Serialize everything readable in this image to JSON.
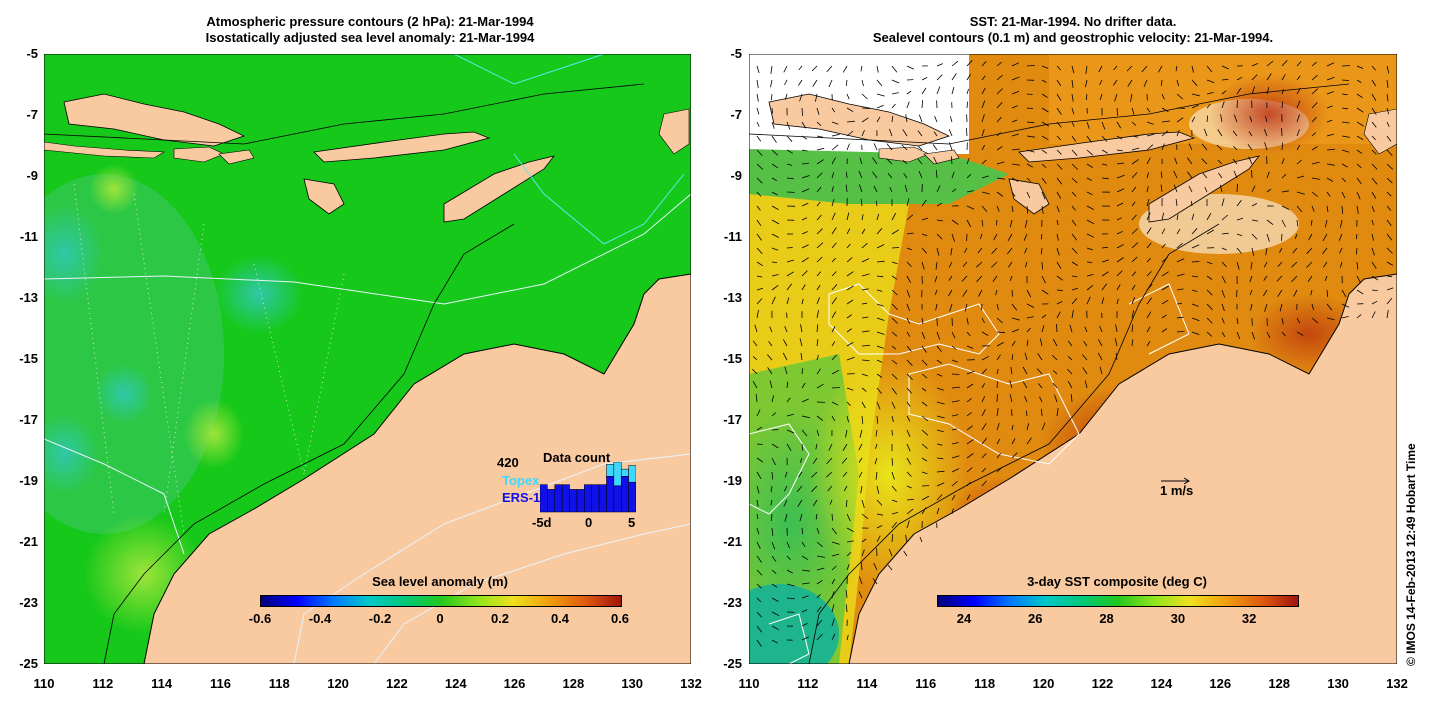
{
  "left_panel": {
    "title_line1": "Atmospheric pressure contours (2 hPa): 21-Mar-1994",
    "title_line2": "Isostatically adjusted sea level anomaly: 21-Mar-1994",
    "colorbar": {
      "title": "Sea level anomaly (m)",
      "tick_labels": [
        "-0.6",
        "-0.4",
        "-0.2",
        "0",
        "0.2",
        "0.4",
        "0.6"
      ]
    },
    "data_count": {
      "title": "Data count",
      "max_count": "420",
      "topex_label": "Topex",
      "ers1_label": "ERS-1",
      "axis_labels": [
        "-5d",
        "0",
        "5"
      ],
      "ers1_counts": [
        230,
        190,
        230,
        230,
        190,
        190,
        230,
        230,
        230,
        300,
        220,
        300,
        250
      ],
      "topex_extra": [
        0,
        0,
        0,
        0,
        0,
        0,
        0,
        0,
        0,
        100,
        200,
        60,
        140
      ]
    }
  },
  "right_panel": {
    "title_line1": "SST: 21-Mar-1994. No drifter data.",
    "title_line2": "Sealevel contours (0.1 m) and geostrophic velocity: 21-Mar-1994.",
    "colorbar": {
      "title": "3-day SST composite (deg C)",
      "tick_labels": [
        "24",
        "26",
        "28",
        "30",
        "32"
      ]
    },
    "velocity_scale_label": "1 m/s"
  },
  "axes": {
    "lon_labels": [
      "110",
      "112",
      "114",
      "116",
      "118",
      "120",
      "122",
      "124",
      "126",
      "128",
      "130",
      "132"
    ],
    "lat_labels": [
      "-5",
      "-7",
      "-9",
      "-11",
      "-13",
      "-15",
      "-17",
      "-19",
      "-21",
      "-23",
      "-25"
    ],
    "lon_range": [
      110,
      132
    ],
    "lat_range": [
      -25,
      -5
    ]
  },
  "credit": "© IMOS 14-Feb-2013 12:49 Hobart Time",
  "colors": {
    "land": "#f9c9a0",
    "sla_ocean": "#16c81a",
    "sst_warm": "#e08a10",
    "sst_hot": "#b82a0e",
    "sst_mid": "#f2c418"
  }
}
